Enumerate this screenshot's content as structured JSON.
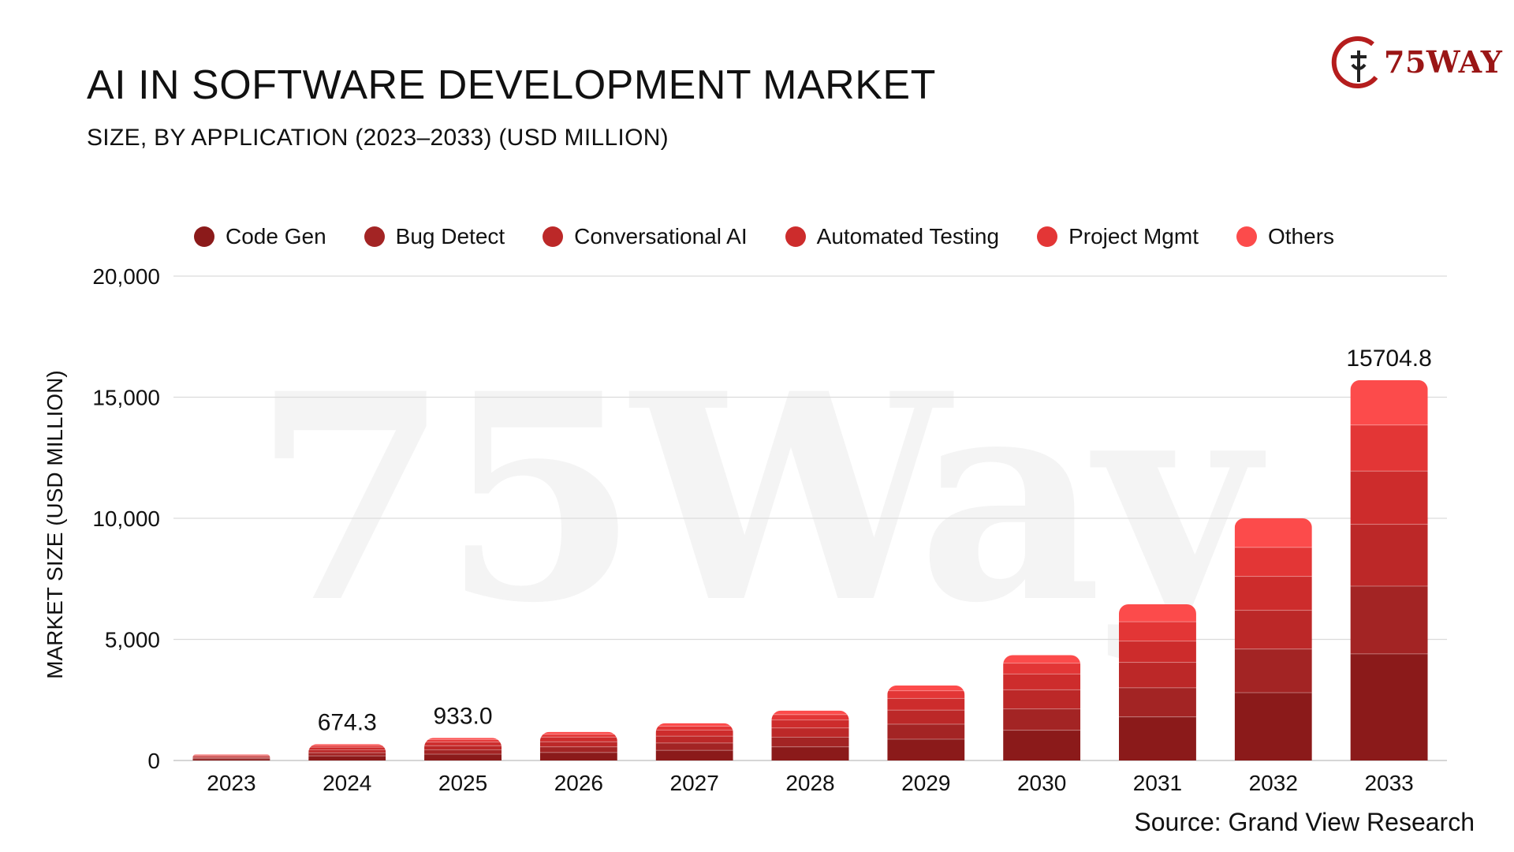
{
  "header": {
    "title": "AI IN SOFTWARE DEVELOPMENT MARKET",
    "subtitle": "SIZE, BY APPLICATION (2023–2033) (USD MILLION)"
  },
  "logo": {
    "text": "75WAY"
  },
  "watermark": {
    "text": "75Way"
  },
  "source": "Source: Grand View Research",
  "chart_data": {
    "type": "bar",
    "stacked": true,
    "categories": [
      "2023",
      "2024",
      "2025",
      "2026",
      "2027",
      "2028",
      "2029",
      "2030",
      "2031",
      "2032",
      "2033"
    ],
    "ylabel": "MARKET SIZE (USD MILLION)",
    "ylim": [
      0,
      20000
    ],
    "yticks": [
      0,
      5000,
      10000,
      15000,
      20000
    ],
    "ytick_labels": [
      "0",
      "5,000",
      "10,000",
      "15,000",
      "20,000"
    ],
    "grid": true,
    "legend_position": "top",
    "series": [
      {
        "name": "Code Gen",
        "color": "#8b1a1a",
        "values": [
          70,
          190,
          260,
          330,
          420,
          560,
          880,
          1250,
          1800,
          2800,
          4400
        ]
      },
      {
        "name": "Bug Detect",
        "color": "#a32424",
        "values": [
          50,
          130,
          180,
          230,
          300,
          400,
          620,
          880,
          1200,
          1800,
          2800
        ]
      },
      {
        "name": "Conversational AI",
        "color": "#bc2828",
        "values": [
          45,
          120,
          170,
          215,
          285,
          385,
          580,
          790,
          1050,
          1600,
          2550
        ]
      },
      {
        "name": "Automated Testing",
        "color": "#cd2c2c",
        "values": [
          40,
          110,
          150,
          190,
          250,
          330,
          480,
          650,
          880,
          1400,
          2200
        ]
      },
      {
        "name": "Project Mgmt",
        "color": "#e33636",
        "values": [
          30,
          70,
          100,
          120,
          160,
          220,
          320,
          450,
          800,
          1200,
          1900
        ]
      },
      {
        "name": "Others",
        "color": "#fc4b4b",
        "values": [
          20,
          54.3,
          73,
          95,
          125,
          165,
          220,
          330,
          720,
          1200,
          1854.8
        ]
      }
    ],
    "data_labels": [
      {
        "category": "2024",
        "text": "674.3"
      },
      {
        "category": "2025",
        "text": "933.0"
      },
      {
        "category": "2033",
        "text": "15704.8"
      }
    ]
  }
}
